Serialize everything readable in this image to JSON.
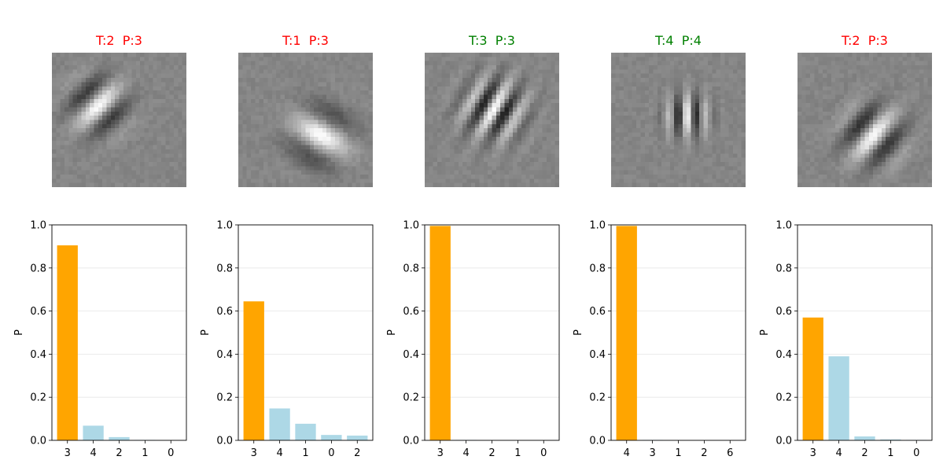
{
  "chart_data": [
    {
      "type": "bar",
      "title": "T:2  P:3",
      "title_color": "#ff0000",
      "categories": [
        "3",
        "4",
        "2",
        "1",
        "0"
      ],
      "values": [
        0.905,
        0.068,
        0.015,
        0.002,
        0.001
      ],
      "highlight_index": 0,
      "ylabel": "P",
      "ylim": [
        0,
        1.0
      ],
      "yticks": [
        "0.0",
        "0.2",
        "0.4",
        "0.6",
        "0.8",
        "1.0"
      ],
      "grid": "y",
      "image": {
        "angle": 45,
        "freq": 0.65,
        "cx": 0.33,
        "cy": 0.38,
        "sigma": 0.28
      }
    },
    {
      "type": "bar",
      "title": "T:1  P:3",
      "title_color": "#ff0000",
      "categories": [
        "3",
        "4",
        "1",
        "0",
        "2"
      ],
      "values": [
        0.645,
        0.148,
        0.077,
        0.025,
        0.022
      ],
      "highlight_index": 0,
      "ylabel": "P",
      "ylim": [
        0,
        1.0
      ],
      "yticks": [
        "0.0",
        "0.2",
        "0.4",
        "0.6",
        "0.8",
        "1.0"
      ],
      "grid": "y",
      "image": {
        "angle": -60,
        "freq": 0.45,
        "cx": 0.6,
        "cy": 0.6,
        "sigma": 0.3
      }
    },
    {
      "type": "bar",
      "title": "T:3  P:3",
      "title_color": "#008000",
      "categories": [
        "3",
        "4",
        "2",
        "1",
        "0"
      ],
      "values": [
        0.995,
        0.002,
        0.001,
        0.001,
        0.001
      ],
      "highlight_index": 0,
      "ylabel": "P",
      "ylim": [
        0,
        1.0
      ],
      "yticks": [
        "0.0",
        "0.2",
        "0.4",
        "0.6",
        "0.8",
        "1.0"
      ],
      "grid": "y",
      "image": {
        "angle": 30,
        "freq": 1.1,
        "cx": 0.5,
        "cy": 0.4,
        "sigma": 0.32
      }
    },
    {
      "type": "bar",
      "title": "T:4  P:4",
      "title_color": "#008000",
      "categories": [
        "4",
        "3",
        "1",
        "2",
        "6"
      ],
      "values": [
        0.995,
        0.002,
        0.001,
        0.001,
        0.001
      ],
      "highlight_index": 0,
      "ylabel": "P",
      "ylim": [
        0,
        1.0
      ],
      "yticks": [
        "0.0",
        "0.2",
        "0.4",
        "0.6",
        "0.8",
        "1.0"
      ],
      "grid": "y",
      "image": {
        "angle": 0,
        "freq": 1.4,
        "cx": 0.55,
        "cy": 0.45,
        "sigma": 0.22
      }
    },
    {
      "type": "bar",
      "title": "T:2  P:3",
      "title_color": "#ff0000",
      "categories": [
        "3",
        "4",
        "2",
        "1",
        "0"
      ],
      "values": [
        0.57,
        0.39,
        0.018,
        0.004,
        0.002
      ],
      "highlight_index": 0,
      "ylabel": "P",
      "ylim": [
        0,
        1.0
      ],
      "yticks": [
        "0.0",
        "0.2",
        "0.4",
        "0.6",
        "0.8",
        "1.0"
      ],
      "grid": "y",
      "image": {
        "angle": 40,
        "freq": 0.7,
        "cx": 0.55,
        "cy": 0.6,
        "sigma": 0.3
      }
    }
  ],
  "colors": {
    "highlight": "#ffa500",
    "other": "#add8e6",
    "grid": "#e6e6e6",
    "axis": "#000000"
  }
}
